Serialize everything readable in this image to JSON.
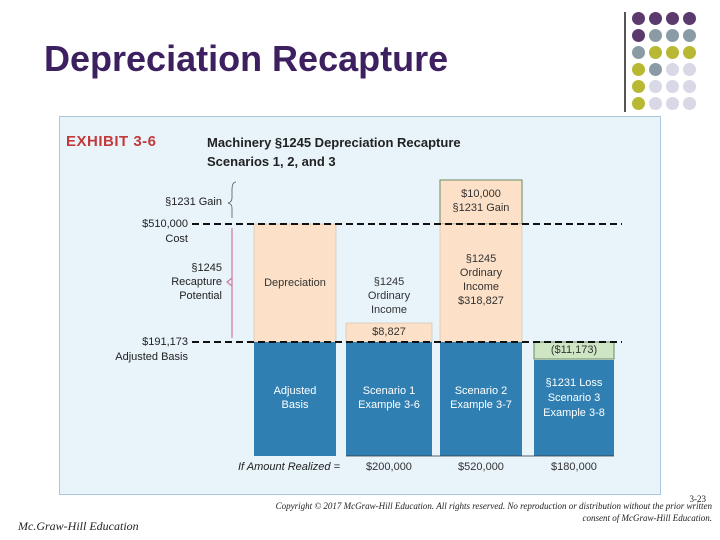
{
  "slide": {
    "title": "Depreciation Recapture",
    "page_number": "3-23",
    "footer_left": "Mc.Graw-Hill Education",
    "copyright_line1": "Copyright © 2017 McGraw-Hill Education. All rights reserved. No reproduction or distribution without the prior written",
    "copyright_line2": "consent of McGraw-Hill Education."
  },
  "exhibit": {
    "label": "EXHIBIT 3-6",
    "title_line1": "Machinery §1245 Depreciation Recapture",
    "title_line2": "Scenarios 1, 2, and 3",
    "left_labels": {
      "gain": "§1231 Gain",
      "cost_value": "$510,000",
      "cost": "Cost",
      "recapture_l1": "§1245",
      "recapture_l2": "Recapture",
      "recapture_l3": "Potential",
      "basis_value": "$191,173",
      "basis": "Adjusted Basis"
    },
    "amount_realized_label": "If Amount Realized =",
    "columns": [
      {
        "upper": "Depreciation",
        "lower_l1": "Adjusted",
        "lower_l2": "Basis",
        "amount": ""
      },
      {
        "upper_l1": "§1245",
        "upper_l2": "Ordinary",
        "upper_l3": "Income",
        "small_box": "$8,827",
        "lower_l1": "Scenario 1",
        "lower_l2": "Example 3-6",
        "amount": "$200,000"
      },
      {
        "top_l1": "$10,000",
        "top_l2": "§1231 Gain",
        "upper_l1": "§1245",
        "upper_l2": "Ordinary",
        "upper_l3": "Income",
        "upper_l4": "$318,827",
        "lower_l1": "Scenario 2",
        "lower_l2": "Example 3-7",
        "amount": "$520,000"
      },
      {
        "loss_box": "($11,173)",
        "lower_l1": "§1231 Loss",
        "lower_l2": "Scenario 3",
        "lower_l3": "Example 3-8",
        "amount": "$180,000"
      }
    ]
  },
  "colors": {
    "title": "#3d2060",
    "peach": "#fce0c8",
    "blue": "#2f7fb3",
    "green": "#cfe6c4",
    "exhibit_label": "#c23b3b",
    "brace": "#d07aa0",
    "dot_purple": "#5b3a6e",
    "dot_gray": "#8a9ba6",
    "dot_olive": "#b8b832",
    "dot_light": "#d8d8e6"
  }
}
